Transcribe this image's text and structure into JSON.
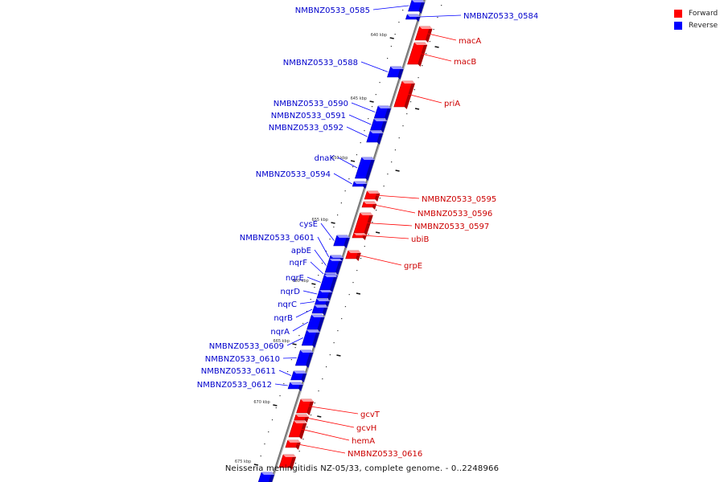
{
  "legend": [
    {
      "label": "Forward",
      "color": "#ff0000"
    },
    {
      "label": "Reverse",
      "color": "#0000ff"
    }
  ],
  "caption": "Neisseria meningitidis NZ-05/33, complete genome. - 0..2248966",
  "ticks": [
    {
      "label": "640 kbp",
      "kbp": 640
    },
    {
      "label": "645 kbp",
      "kbp": 645
    },
    {
      "label": "650 kbp",
      "kbp": 650
    },
    {
      "label": "655 kbp",
      "kbp": 655
    },
    {
      "label": "660 kbp",
      "kbp": 660
    },
    {
      "label": "665 kbp",
      "kbp": 665
    },
    {
      "label": "670 kbp",
      "kbp": 670
    },
    {
      "label": "675 kbp",
      "kbp": 675
    }
  ],
  "forward_genes": [
    "macA",
    "macB",
    "priA",
    "NMBNZ0533_0595",
    "NMBNZ0533_0596",
    "NMBNZ0533_0597",
    "ubiB",
    "grpE",
    "gcvT",
    "gcvH",
    "hemA",
    "NMBNZ0533_0616"
  ],
  "reverse_genes": [
    "NMBNZ0533_0585",
    "NMBNZ0533_0584",
    "NMBNZ0533_0588",
    "NMBNZ0533_0590",
    "NMBNZ0533_0591",
    "NMBNZ0533_0592",
    "dnaK",
    "NMBNZ0533_0594",
    "cysE",
    "NMBNZ0533_0601",
    "apbE",
    "nqrF",
    "nqrE",
    "nqrD",
    "nqrC",
    "nqrB",
    "nqrA",
    "NMBNZ0533_0609",
    "NMBNZ0533_0610",
    "NMBNZ0533_0611",
    "NMBNZ0533_0612"
  ],
  "colors": {
    "forward": "#ff0000",
    "reverse": "#0000ff",
    "forward_label": "#cc0000",
    "reverse_label": "#0000cc"
  }
}
